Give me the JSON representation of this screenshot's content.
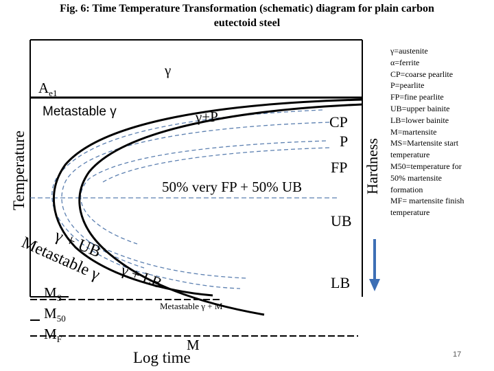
{
  "title_line1": "Fig. 6: Time Temperature Transformation (schematic) diagram for plain carbon",
  "title_line2": "eutectoid steel",
  "y_axis_label": "Temperature",
  "x_axis_label": "Log time",
  "hardness_label": "Hardness",
  "regions": {
    "gamma": "γ",
    "ae1_main": "A",
    "ae1_sub": "e1",
    "metastable_gamma": "Metastable γ",
    "gamma_plus_p": "γ+P",
    "cp": "CP",
    "p": "P",
    "fp": "FP",
    "mixed": "50% very FP + 50% UB",
    "ub": "UB",
    "lb": "LB",
    "gamma_plus_ub": "γ + UB",
    "metastable_left": "Metastable γ",
    "gamma_plus_lb": "γ + LB",
    "metastable_gamma_m": "Metastable γ + M",
    "m": "M"
  },
  "temps": {
    "ms_main": "M",
    "ms_sub": "S",
    "m50_main": "M",
    "m50_sub": "50",
    "mf_main": "M",
    "mf_sub": "F"
  },
  "legend": [
    "γ=austenite",
    "α=ferrite",
    "CP=coarse pearlite",
    "P=pearlite",
    "FP=fine pearlite",
    "UB=upper bainite",
    "LB=lower bainite",
    "M=martensite",
    "MS=Martensite start",
    "temperature",
    "M50=temperature for",
    "50% martensite",
    "formation",
    "MF= martensite finish",
    "temperature"
  ],
  "page_number": "17",
  "colors": {
    "curve": "#000000",
    "dashed": "#5b7fb0",
    "arrow": "#3d6fb5"
  }
}
